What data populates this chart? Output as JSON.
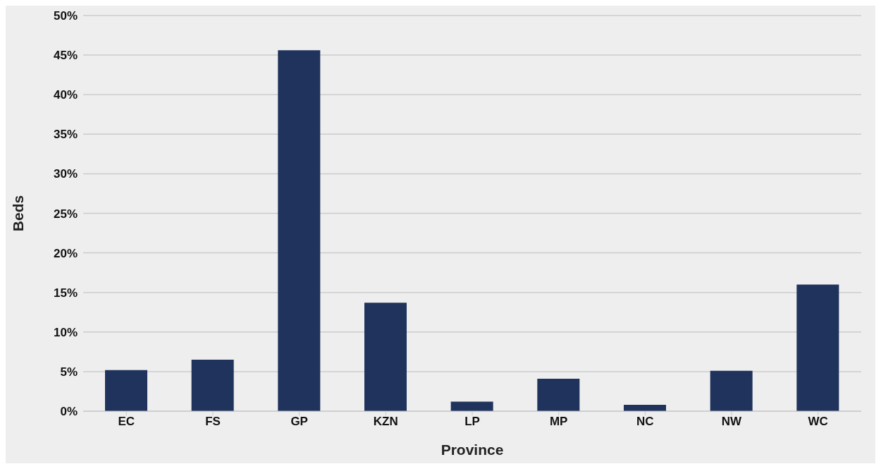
{
  "chart_data": {
    "type": "bar",
    "xlabel": "Province",
    "ylabel": "Beds",
    "categories": [
      "EC",
      "FS",
      "GP",
      "KZN",
      "LP",
      "MP",
      "NC",
      "NW",
      "WC"
    ],
    "values": [
      5.2,
      6.5,
      45.6,
      13.7,
      1.2,
      4.1,
      0.8,
      5.1,
      16.0
    ],
    "color": "#1f335c",
    "ylim": [
      0,
      50
    ],
    "yticks": [
      {
        "value": 0,
        "label": "0%"
      },
      {
        "value": 5,
        "label": "5%"
      },
      {
        "value": 10,
        "label": "10%"
      },
      {
        "value": 15,
        "label": "15%"
      },
      {
        "value": 20,
        "label": "20%"
      },
      {
        "value": 25,
        "label": "25%"
      },
      {
        "value": 30,
        "label": "30%"
      },
      {
        "value": 35,
        "label": "35%"
      },
      {
        "value": 40,
        "label": "40%"
      },
      {
        "value": 45,
        "label": "45%"
      },
      {
        "value": 50,
        "label": "50%"
      }
    ],
    "grid": "y"
  }
}
